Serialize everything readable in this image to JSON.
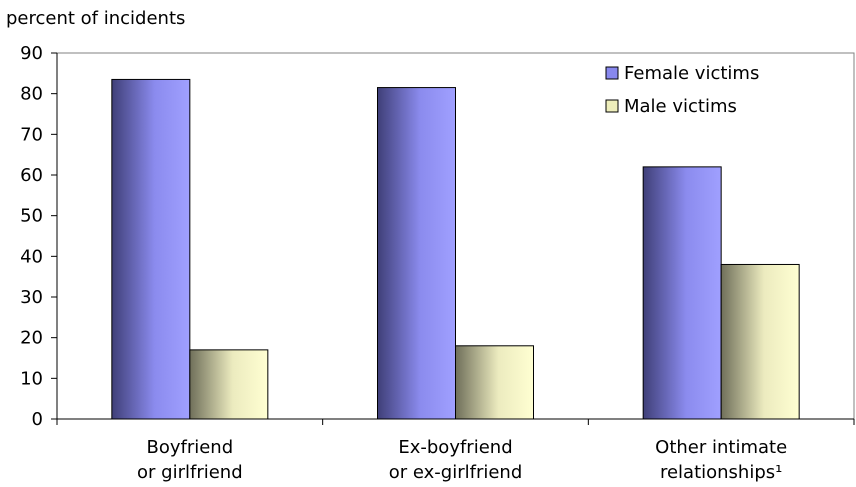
{
  "chart_data": {
    "type": "bar",
    "title": "",
    "xlabel": "",
    "ylabel": "percent of incidents",
    "ylim": [
      0,
      90
    ],
    "yticks": [
      0,
      10,
      20,
      30,
      40,
      50,
      60,
      70,
      80,
      90
    ],
    "grid": false,
    "legend_position": "top-right",
    "categories": [
      [
        "Boyfriend",
        "or girlfriend"
      ],
      [
        "Ex-boyfriend",
        "or ex-girlfriend"
      ],
      [
        "Other intimate",
        "relationships¹"
      ]
    ],
    "series": [
      {
        "name": "Female victims",
        "values": [
          83.5,
          81.5,
          62
        ],
        "color": "#9999ff"
      },
      {
        "name": "Male victims",
        "values": [
          17,
          18,
          38
        ],
        "color": "#ffffcc"
      }
    ]
  }
}
